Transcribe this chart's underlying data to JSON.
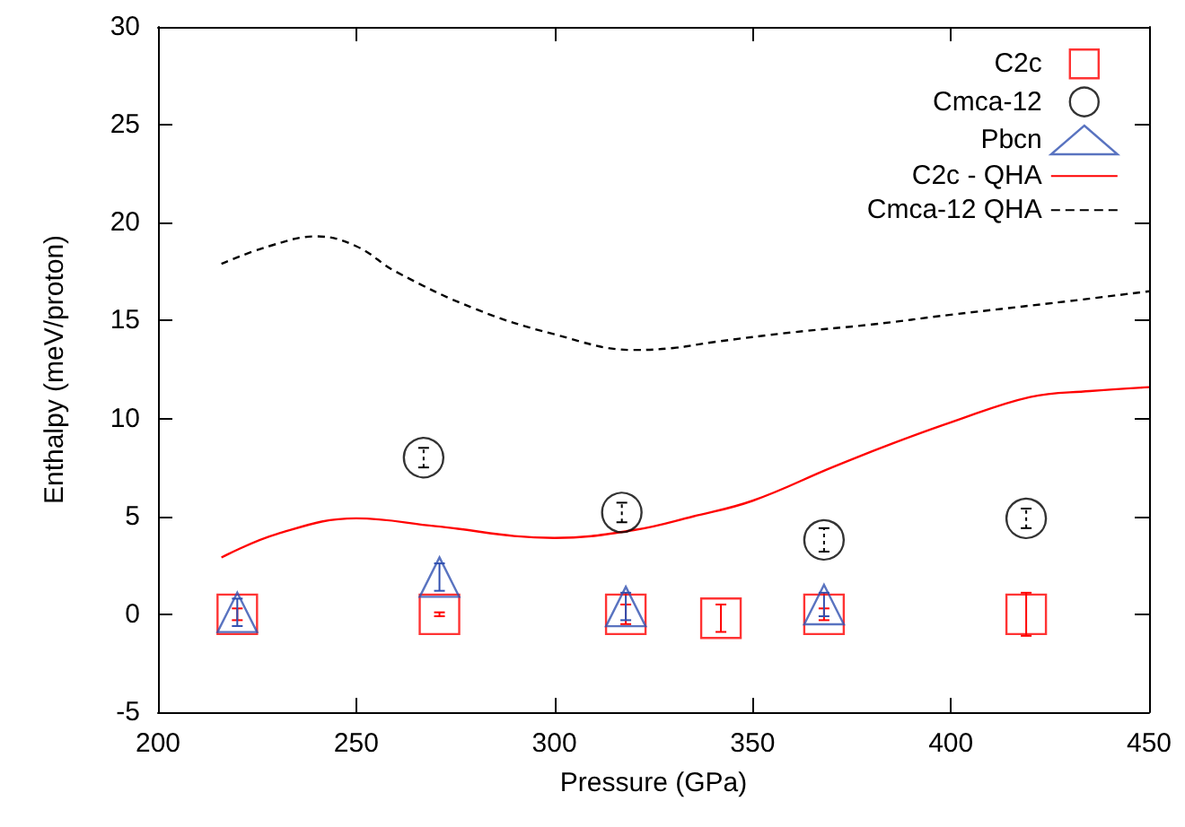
{
  "chart_data": {
    "type": "scatter",
    "xlabel": "Pressure (GPa)",
    "ylabel": "Enthalpy (meV/proton)",
    "xlim": [
      200,
      450
    ],
    "xticks": [
      200,
      250,
      300,
      350,
      400,
      450
    ],
    "ylim": [
      -5,
      30
    ],
    "yticks": [
      -5,
      0,
      5,
      10,
      15,
      20,
      25,
      30
    ],
    "grid": false,
    "legend": "top right",
    "series": [
      {
        "name": "C2c",
        "marker": "square",
        "color": "#ff0000",
        "x": [
          220,
          271,
          318,
          342,
          368,
          419
        ],
        "values": [
          0,
          0,
          0,
          -0.2,
          0,
          0
        ],
        "errors": [
          0.3,
          0.1,
          0.5,
          0.7,
          0.3,
          1.1
        ]
      },
      {
        "name": "Cmca-12",
        "marker": "circle",
        "line_style": "dashed",
        "color": "#000000",
        "x": [
          267,
          317,
          368,
          419
        ],
        "values": [
          8.0,
          5.2,
          3.8,
          4.9
        ],
        "errors": [
          0.5,
          0.5,
          0.6,
          0.5
        ]
      },
      {
        "name": "Pbcn",
        "marker": "triangle",
        "color": "#3050b0",
        "x": [
          220,
          271,
          318,
          368
        ],
        "values": [
          0.1,
          1.9,
          0.4,
          0.5
        ],
        "errors": [
          0.7,
          0.7,
          0.7,
          0.6
        ]
      },
      {
        "name": "C2c - QHA",
        "type": "line",
        "line_style": "solid",
        "color": "#ff0000",
        "x": [
          216,
          230,
          250,
          270,
          300,
          320,
          335,
          350,
          370,
          385,
          400,
          420,
          435,
          450
        ],
        "values": [
          2.9,
          4.1,
          4.9,
          4.5,
          3.9,
          4.3,
          5.0,
          5.8,
          7.5,
          8.7,
          9.8,
          11.1,
          11.4,
          11.6
        ]
      },
      {
        "name": "Cmca-12 QHA",
        "type": "line",
        "line_style": "dashed",
        "color": "#000000",
        "x": [
          216,
          228,
          240,
          250,
          260,
          280,
          300,
          320,
          330,
          340,
          360,
          380,
          400,
          430,
          450
        ],
        "values": [
          17.9,
          18.8,
          19.3,
          18.8,
          17.5,
          15.6,
          14.3,
          13.5,
          13.6,
          13.9,
          14.4,
          14.8,
          15.3,
          16.0,
          16.5
        ]
      }
    ]
  }
}
